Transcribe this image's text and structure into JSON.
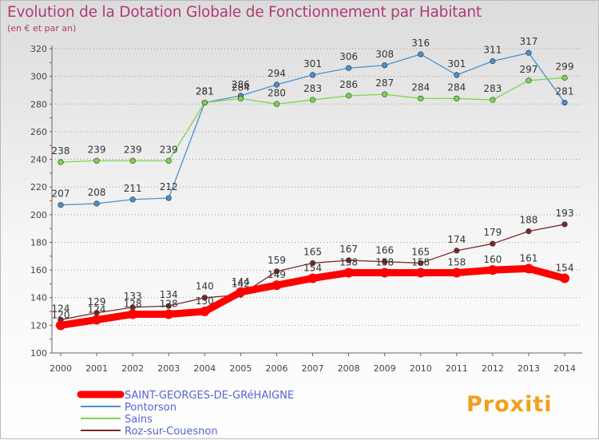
{
  "title": "Evolution de la Dotation Globale de Fonctionnement par Habitant",
  "subtitle": "(en € et par an)",
  "brand": "Proxiti",
  "chart_data": {
    "type": "line",
    "x": [
      "2000",
      "2001",
      "2002",
      "2003",
      "2004",
      "2005",
      "2006",
      "2007",
      "2008",
      "2009",
      "2010",
      "2011",
      "2012",
      "2013",
      "2014"
    ],
    "ylim": [
      100,
      320
    ],
    "yticks": [
      100,
      120,
      140,
      160,
      180,
      200,
      220,
      240,
      260,
      280,
      300,
      320
    ],
    "grid": "horizontal-dotted",
    "legend_position": "bottom-left",
    "series": [
      {
        "name": "SAINT-GEORGES-DE-GRéHAIGNE",
        "color": "#ff0000",
        "values": [
          120,
          124,
          128,
          128,
          130,
          144,
          149,
          154,
          158,
          158,
          158,
          158,
          160,
          161,
          154
        ]
      },
      {
        "name": "Pontorson",
        "color": "#4a90d0",
        "values": [
          207,
          208,
          211,
          212,
          281,
          286,
          294,
          301,
          306,
          308,
          316,
          301,
          311,
          317,
          281
        ]
      },
      {
        "name": "Sains",
        "color": "#7cd64a",
        "values": [
          238,
          239,
          239,
          239,
          281,
          284,
          280,
          283,
          286,
          287,
          284,
          284,
          283,
          297,
          299
        ]
      },
      {
        "name": "Roz-sur-Couesnon",
        "color": "#7a2a2a",
        "values": [
          124,
          129,
          133,
          134,
          140,
          142,
          159,
          165,
          167,
          166,
          165,
          174,
          179,
          188,
          193
        ]
      }
    ]
  }
}
